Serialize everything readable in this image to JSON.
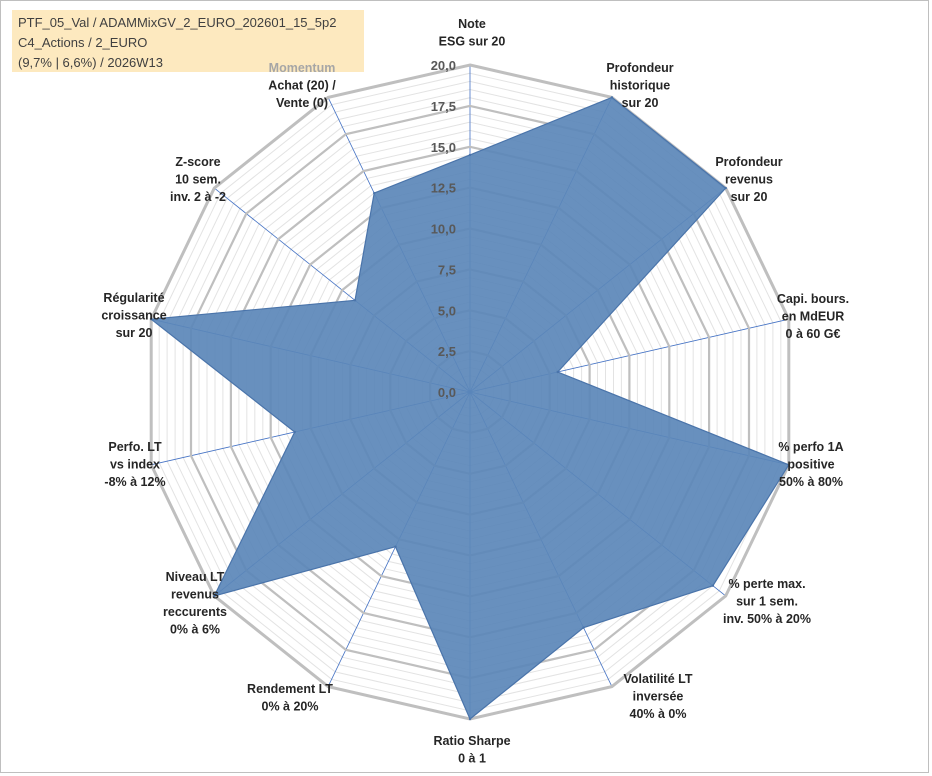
{
  "header": {
    "line1": "PTF_05_Val / ADAMMixGV_2_EURO_202601_15_5p2",
    "line2": "C4_Actions / 2_EURO",
    "line3": "(9,7% | 6,6%) / 2026W13"
  },
  "colors": {
    "fill": "#5b87b9",
    "stroke": "#4a74aa",
    "grid_major": "#bfbfbf",
    "grid_minor": "#e3e3e3",
    "spoke": "#4472c4"
  },
  "chart_data": {
    "type": "radar",
    "rmax": 20,
    "ticks": [
      "0,0",
      "2,5",
      "5,0",
      "7,5",
      "10,0",
      "12,5",
      "15,0",
      "17,5",
      "20,0"
    ],
    "axes": [
      {
        "label": [
          "Note",
          "ESG sur 20"
        ],
        "value": 14.5
      },
      {
        "label": [
          "Profondeur",
          "historique",
          "sur 20"
        ],
        "value": 20
      },
      {
        "label": [
          "Profondeur",
          "revenus",
          "sur 20"
        ],
        "value": 20
      },
      {
        "label": [
          "Capi. bours.",
          "en MdEUR",
          "0 à 60 G€"
        ],
        "value": 5.5
      },
      {
        "label": [
          "% perfo 1A",
          "positive",
          "50% à 80%"
        ],
        "value": 20
      },
      {
        "label": [
          "% perte max.",
          "sur 1 sem.",
          "inv. 50% à 20%"
        ],
        "value": 19
      },
      {
        "label": [
          "Volatilité LT",
          "inversée",
          "40% à 0%"
        ],
        "value": 16
      },
      {
        "label": [
          "Ratio Sharpe",
          "0 à 1"
        ],
        "value": 20
      },
      {
        "label": [
          "Rendement LT",
          "0% à 20%"
        ],
        "value": 10.5
      },
      {
        "label": [
          "Niveau LT",
          "revenus",
          "reccurents",
          "0% à 6%"
        ],
        "value": 20
      },
      {
        "label": [
          "Perfo. LT",
          "vs index",
          "-8% à 12%"
        ],
        "value": 11
      },
      {
        "label": [
          "Régularité",
          "croissance",
          "sur 20"
        ],
        "value": 20
      },
      {
        "label": [
          "Z-score",
          "10 sem.",
          "inv. 2 à -2"
        ],
        "value": 9
      },
      {
        "label": [
          "Momentum",
          "Achat (20) /",
          "Vente (0)"
        ],
        "value": 13.5
      }
    ]
  }
}
